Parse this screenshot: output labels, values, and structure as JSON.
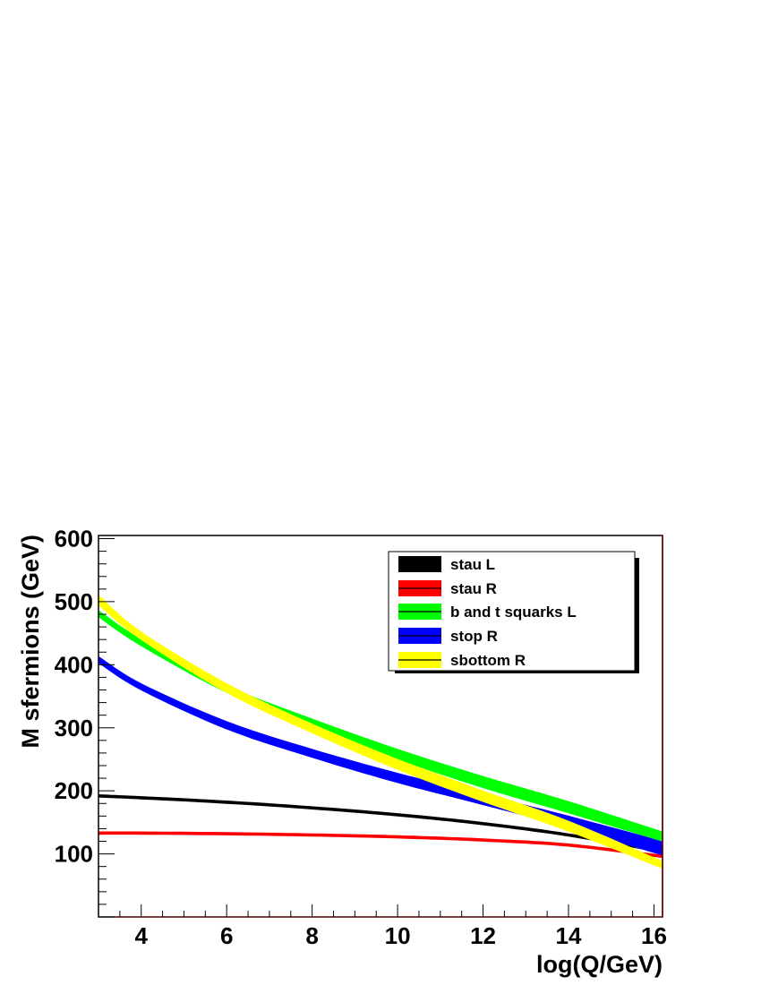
{
  "chart_data": {
    "type": "area",
    "xlabel": "log(Q/GeV)",
    "ylabel": "M sfermions (GeV)",
    "xlim": [
      3,
      16.2
    ],
    "ylim": [
      0,
      605
    ],
    "x_ticks": [
      4,
      6,
      8,
      10,
      12,
      14,
      16
    ],
    "y_ticks": [
      100,
      200,
      300,
      400,
      500,
      600
    ],
    "grid": false,
    "legend_position": "top-right",
    "series": [
      {
        "name": "stau L",
        "color": "#000000",
        "x": [
          3,
          4,
          6,
          8,
          10,
          12,
          14,
          16.2
        ],
        "low": [
          190,
          187,
          180,
          171,
          160,
          146,
          128,
          102
        ],
        "high": [
          194,
          191,
          184,
          175,
          164,
          150,
          132,
          106
        ]
      },
      {
        "name": "stau R",
        "color": "#ff0000",
        "x": [
          3,
          4,
          6,
          8,
          10,
          12,
          14,
          16.2
        ],
        "low": [
          131,
          131,
          130,
          128,
          125,
          120,
          112,
          94
        ],
        "high": [
          135,
          135,
          134,
          132,
          129,
          124,
          116,
          98
        ]
      },
      {
        "name": "b and t squarks L",
        "color": "#00ff00",
        "x": [
          3,
          4,
          6,
          8,
          10,
          12,
          14,
          16.2
        ],
        "low": [
          476,
          430,
          356,
          300,
          250,
          205,
          165,
          120
        ],
        "high": [
          486,
          440,
          367,
          314,
          266,
          223,
          183,
          135
        ]
      },
      {
        "name": "stop R",
        "color": "#0000ff",
        "x": [
          3,
          4,
          6,
          8,
          10,
          12,
          14,
          16.2
        ],
        "low": [
          403,
          360,
          298,
          253,
          213,
          178,
          142,
          98
        ],
        "high": [
          413,
          370,
          310,
          266,
          228,
          194,
          160,
          120
        ]
      },
      {
        "name": "sbottom R",
        "color": "#ffff00",
        "x": [
          3,
          4,
          6,
          8,
          10,
          12,
          14,
          16.2
        ],
        "low": [
          495,
          440,
          356,
          292,
          234,
          183,
          136,
          77
        ],
        "high": [
          510,
          452,
          370,
          306,
          250,
          200,
          152,
          88
        ]
      }
    ]
  }
}
